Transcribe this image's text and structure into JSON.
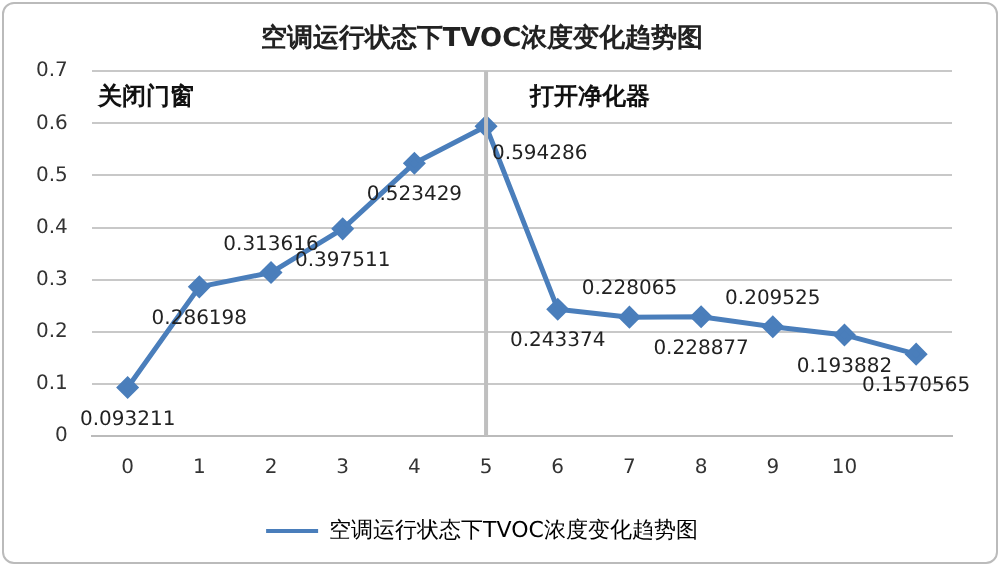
{
  "chart_data": {
    "type": "line",
    "title": "空调运行状态下TVOC浓度变化趋势图",
    "categories": [
      "0",
      "1",
      "2",
      "3",
      "4",
      "5",
      "6",
      "7",
      "8",
      "9",
      "10",
      null
    ],
    "series": [
      {
        "name": "空调运行状态下TVOC浓度变化趋势图",
        "color": "#4a7ebb",
        "values": [
          0.093211,
          0.286198,
          0.313616,
          0.397511,
          0.523429,
          0.594286,
          0.243374,
          0.228065,
          0.228877,
          0.209525,
          0.193882,
          0.1570565
        ]
      }
    ],
    "ylim": [
      0,
      0.7
    ],
    "yticks": [
      0,
      0.1,
      0.2,
      0.3,
      0.4,
      0.5,
      0.6,
      0.7
    ],
    "grid": "y",
    "legend": "bottom",
    "marker": "diamond",
    "line_style": "solid",
    "data_labels": true,
    "ref_lines": [
      {
        "axis": "x",
        "value": "5",
        "color": "#bfbfbf"
      }
    ],
    "annotations": [
      "关闭门窗",
      "打开净化器"
    ]
  }
}
